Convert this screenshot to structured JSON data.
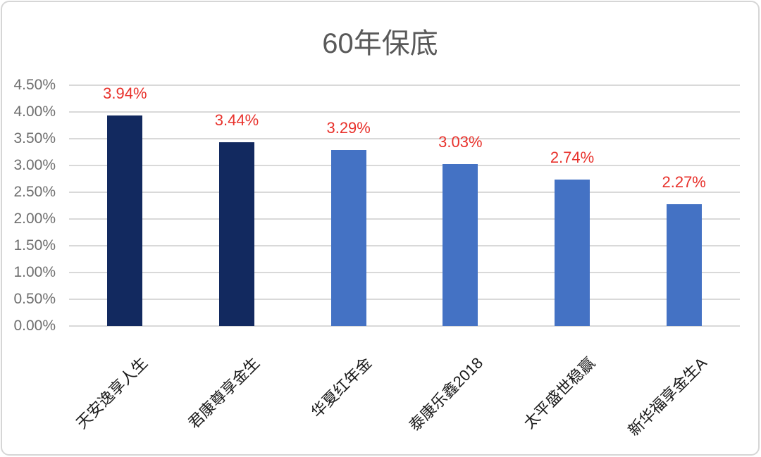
{
  "chart_data": {
    "type": "bar",
    "title": "60年保底",
    "categories": [
      "天安逸享人生",
      "君康尊享金生",
      "华夏红年金",
      "泰康乐鑫2018",
      "太平盛世稳赢",
      "新华福享金生A"
    ],
    "values": [
      3.94,
      3.44,
      3.29,
      3.03,
      2.74,
      2.27
    ],
    "value_labels": [
      "3.94%",
      "3.44%",
      "3.29%",
      "3.03%",
      "2.74%",
      "2.27%"
    ],
    "bar_colors": [
      "#12295F",
      "#12295F",
      "#4472C4",
      "#4472C4",
      "#4472C4",
      "#4472C4"
    ],
    "ylim": [
      0,
      4.5
    ],
    "ytick_step": 0.5,
    "yticks": [
      "4.50%",
      "4.00%",
      "3.50%",
      "3.00%",
      "2.50%",
      "2.00%",
      "1.50%",
      "1.00%",
      "0.50%",
      "0.00%"
    ],
    "grid": true,
    "legend": "none",
    "xlabel": "",
    "ylabel": "",
    "category_rotation_deg": 45,
    "colors": {
      "value_label": "#e8312b",
      "title": "#595959",
      "axis_text": "#6e6e6e",
      "category_text": "#1a1a1a",
      "gridline": "#d9d9d9",
      "frame_border": "#d6d6d6",
      "background": "#ffffff"
    }
  }
}
